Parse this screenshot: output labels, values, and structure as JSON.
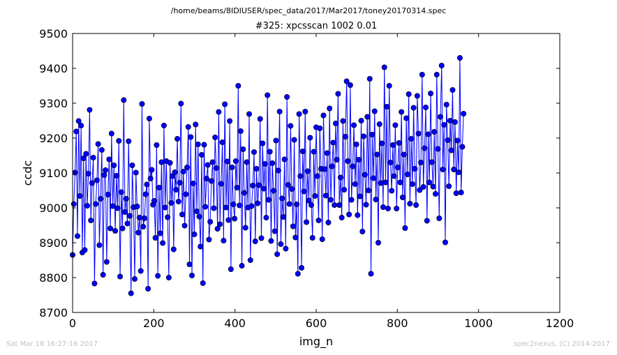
{
  "header": {
    "file_path": "/home/beams/8IDIUSER/spec_data/2017/Mar2017/toney20170314.spec",
    "scan_title": "#325: xpcsscan 1002 0.01"
  },
  "footer": {
    "timestamp": "Sat Mar 18 16:27:16 2017",
    "credit": "spec2nexus, (C) 2014-2017"
  },
  "chart_data": {
    "type": "line",
    "title": "#325: xpcsscan 1002 0.01",
    "xlabel": "img_n",
    "ylabel": "ccdc",
    "xlim": [
      0,
      1200
    ],
    "ylim": [
      8700,
      9500
    ],
    "xticks": [
      0,
      200,
      400,
      600,
      800,
      1000,
      1200
    ],
    "yticks": [
      8700,
      8800,
      8900,
      9000,
      9100,
      9200,
      9300,
      9400,
      9500
    ],
    "grid": false,
    "legend": "none",
    "x_start": 0,
    "x_step": 3,
    "marker": "circle",
    "colors": {
      "line": "#0000ff",
      "marker_fill": "#0000ff",
      "marker_edge": "#000000"
    },
    "series": [
      {
        "values": [
          8865,
          9011,
          9101,
          9219,
          8919,
          9249,
          9034,
          9236,
          8872,
          9142,
          8879,
          9155,
          9006,
          9098,
          9281,
          8964,
          9071,
          9144,
          8783,
          9011,
          9079,
          9183,
          8893,
          9026,
          9166,
          8808,
          9094,
          9108,
          8845,
          9038,
          9139,
          8941,
          9213,
          9005,
          9122,
          8934,
          9092,
          8999,
          9192,
          8803,
          9045,
          8941,
          9309,
          8988,
          9026,
          8955,
          9191,
          8977,
          8755,
          9122,
          9002,
          8796,
          9101,
          9004,
          8929,
          8972,
          8819,
          9298,
          8946,
          8970,
          9039,
          9067,
          8768,
          9256,
          9084,
          9109,
          9009,
          9020,
          8914,
          9180,
          8805,
          9058,
          8927,
          9131,
          8899,
          9236,
          9001,
          9134,
          8973,
          8800,
          9129,
          9014,
          9091,
          8881,
          9102,
          9052,
          9198,
          9018,
          9072,
          9299,
          8981,
          9104,
          8949,
          9039,
          9116,
          9232,
          8838,
          9203,
          8806,
          9070,
          8924,
          9239,
          8990,
          9182,
          8975,
          8889,
          9152,
          8784,
          9181,
          9003,
          9084,
          9123,
          8909,
          8960,
          9077,
          9131,
          8999,
          9202,
          9114,
          8940,
          9275,
          8953,
          9069,
          9188,
          8906,
          9297,
          9001,
          9133,
          8965,
          9249,
          8824,
          9116,
          9010,
          8969,
          9134,
          9058,
          9350,
          9007,
          9220,
          8834,
          9168,
          9043,
          8943,
          9131,
          9001,
          9269,
          8850,
          9005,
          9064,
          9160,
          8904,
          9112,
          9013,
          9065,
          9255,
          8913,
          9185,
          9055,
          9126,
          8972,
          9323,
          9023,
          9161,
          8905,
          9128,
          9049,
          8933,
          9193,
          8867,
          9107,
          9276,
          8896,
          9027,
          8974,
          9139,
          8883,
          9318,
          9066,
          9011,
          9235,
          9054,
          8947,
          9195,
          8915,
          9010,
          8811,
          9269,
          9091,
          8828,
          9162,
          9047,
          9276,
          8959,
          9105,
          9021,
          9201,
          9008,
          8914,
          9161,
          9034,
          9231,
          9091,
          8964,
          9228,
          9112,
          8910,
          9265,
          9111,
          9035,
          9157,
          8958,
          9285,
          9023,
          9119,
          9187,
          9008,
          9242,
          9138,
          9327,
          9008,
          9087,
          8972,
          9249,
          9052,
          9204,
          9363,
          9134,
          8981,
          9352,
          9023,
          9119,
          9237,
          9068,
          9182,
          8979,
          9138,
          9033,
          9250,
          8932,
          9205,
          9095,
          9009,
          9261,
          9050,
          9370,
          8811,
          9210,
          9085,
          9277,
          9024,
          9153,
          8900,
          9240,
          9071,
          9185,
          9002,
          9403,
          9073,
          9290,
          8998,
          9350,
          9130,
          9049,
          9180,
          9091,
          9237,
          8998,
          9116,
          9186,
          9073,
          9275,
          9030,
          9153,
          8942,
          9257,
          9096,
          9326,
          9012,
          9198,
          9068,
          9287,
          9112,
          9008,
          9321,
          9213,
          9051,
          9130,
          9382,
          9060,
          9171,
          9288,
          8963,
          9211,
          9073,
          9328,
          9131,
          9061,
          9218,
          9040,
          9382,
          9169,
          8970,
          9261,
          9408,
          9110,
          9238,
          8901,
          9296,
          9194,
          9062,
          9250,
          9165,
          9338,
          9110,
          9246,
          9042,
          9193,
          9102,
          9430,
          9044,
          9175,
          9270
        ]
      }
    ]
  }
}
